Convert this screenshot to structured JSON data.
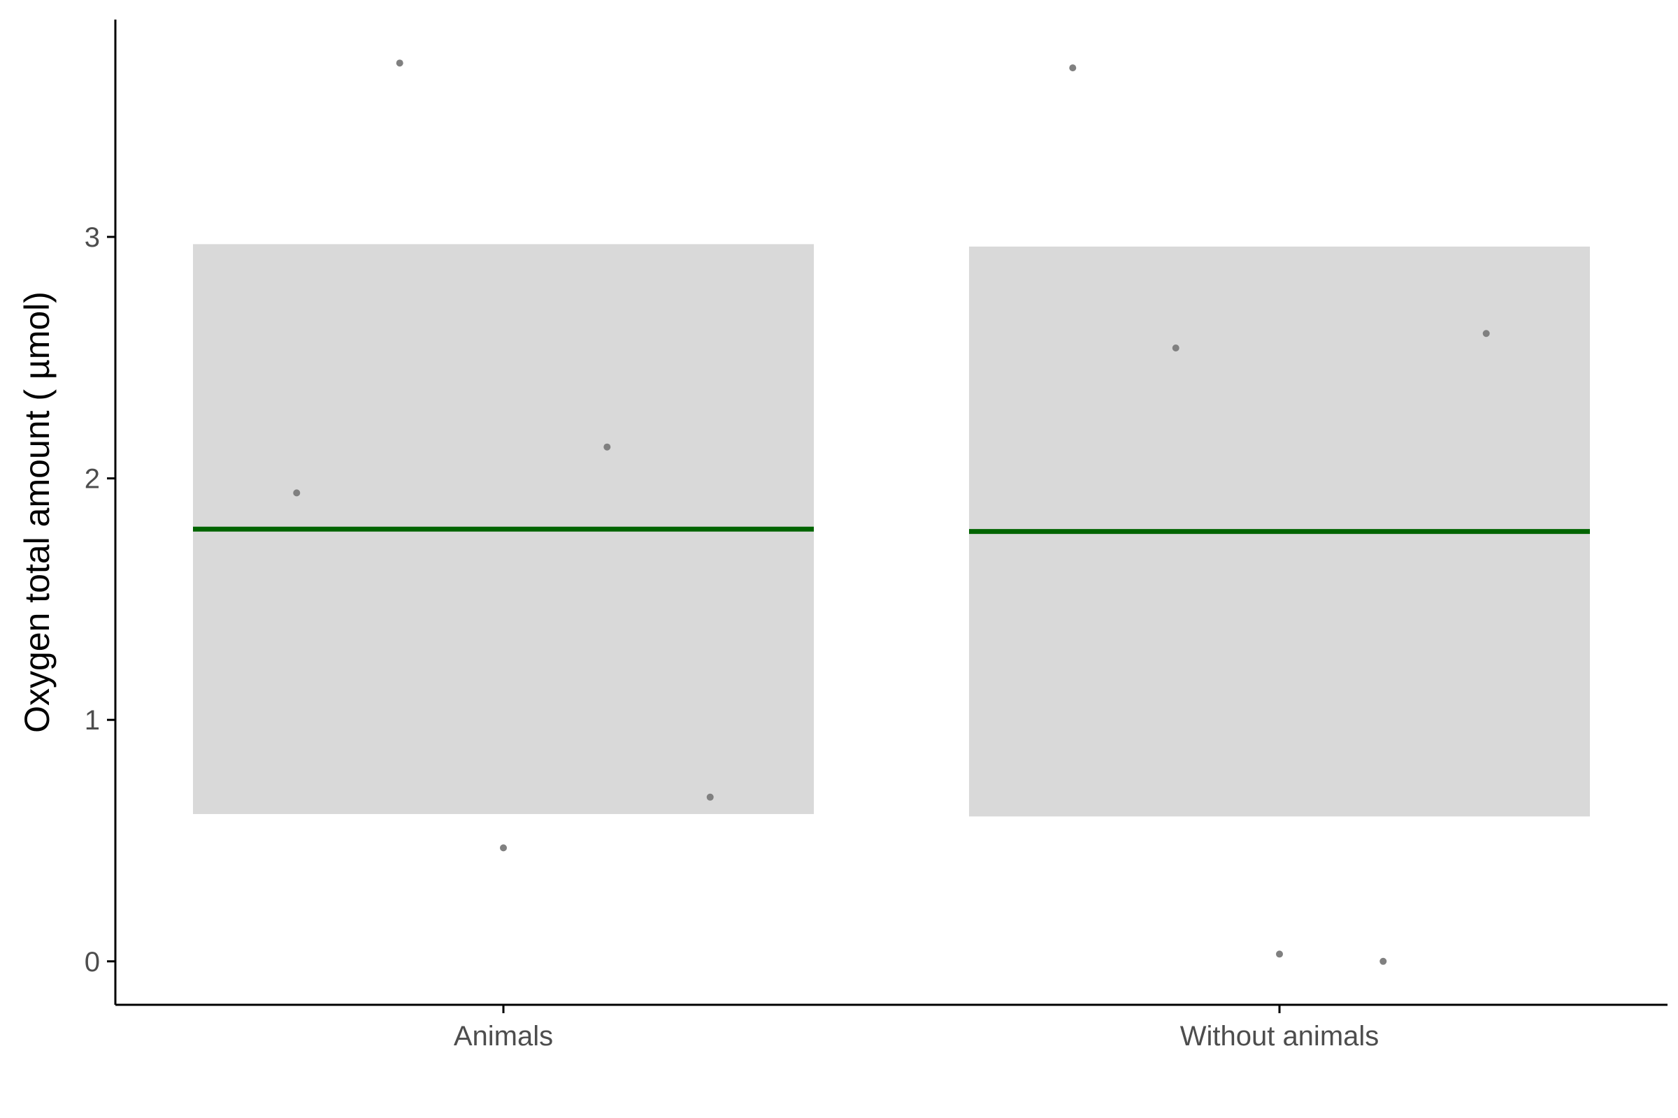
{
  "chart_data": {
    "type": "scatter",
    "xlabel": "",
    "ylabel": "Oxygen total amount ( µmol)",
    "categories": [
      "Animals",
      "Without animals"
    ],
    "ylim": [
      -0.18,
      3.9
    ],
    "yticks": [
      0,
      1,
      2,
      3
    ],
    "grid": false,
    "legend": "none",
    "colors": {
      "band": "#d9d9d9",
      "mean_line": "#006400",
      "points": "#808080",
      "axis": "#000000"
    },
    "groups": [
      {
        "category": "Animals",
        "mean": 1.79,
        "band_low": 0.61,
        "band_high": 2.97,
        "points": [
          1.94,
          3.72,
          0.47,
          2.13,
          0.68
        ]
      },
      {
        "category": "Without animals",
        "mean": 1.78,
        "band_low": 0.6,
        "band_high": 2.96,
        "points": [
          3.7,
          2.54,
          0.03,
          0.0,
          2.6
        ]
      }
    ]
  }
}
